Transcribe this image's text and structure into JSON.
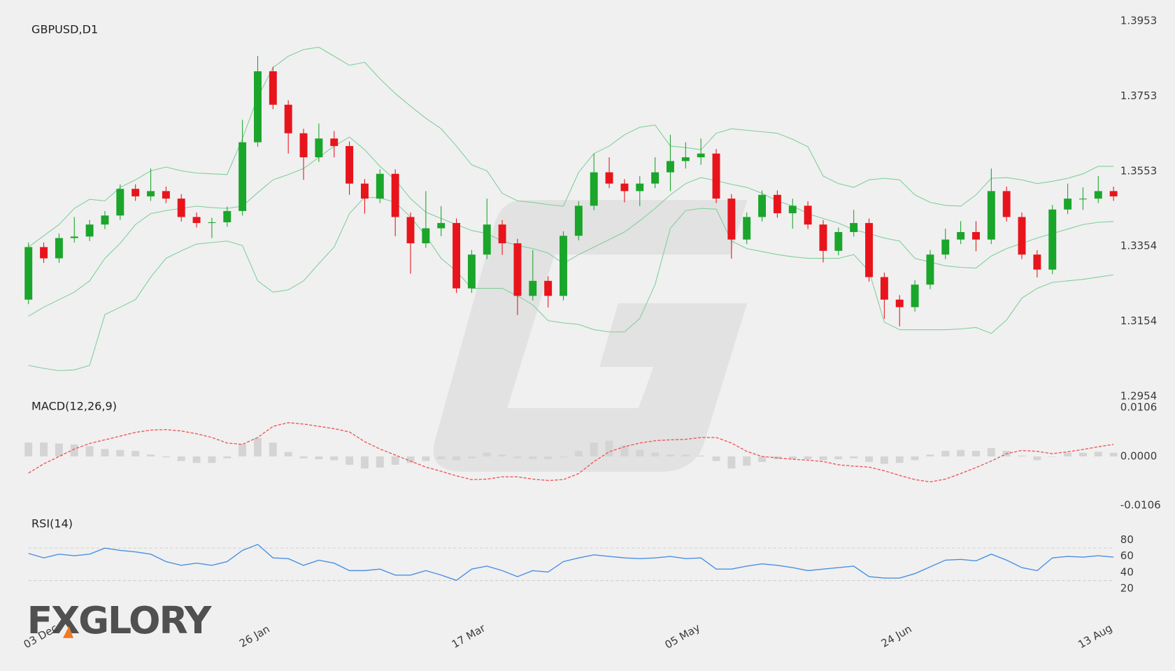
{
  "logo": "FXGLORY",
  "chart_data": [
    {
      "type": "candlestick",
      "title": "GBPUSD,D1",
      "categories": [
        null,
        "03 Dec",
        null,
        null,
        null,
        null,
        null,
        null,
        null,
        null,
        null,
        null,
        null,
        null,
        null,
        "26 Jan",
        null,
        null,
        null,
        null,
        null,
        null,
        null,
        null,
        null,
        null,
        null,
        null,
        null,
        "17 Mar",
        null,
        null,
        null,
        null,
        null,
        null,
        null,
        null,
        null,
        null,
        null,
        null,
        null,
        "05 May",
        null,
        null,
        null,
        null,
        null,
        null,
        null,
        null,
        null,
        null,
        null,
        null,
        null,
        "24 Jun",
        null,
        null,
        null,
        null,
        null,
        null,
        null,
        null,
        null,
        null,
        null,
        null,
        "13 Aug",
        null
      ],
      "open": [
        1.3211,
        1.3351,
        1.3321,
        1.3375,
        1.3379,
        1.3411,
        1.3435,
        1.3506,
        1.3486,
        1.35,
        1.348,
        1.3431,
        1.3415,
        1.3417,
        1.3447,
        1.363,
        1.3819,
        1.373,
        1.3654,
        1.359,
        1.364,
        1.362,
        1.352,
        1.348,
        1.3546,
        1.3431,
        1.3361,
        1.3401,
        1.3415,
        1.3241,
        1.3331,
        1.3411,
        1.3361,
        1.3221,
        1.3261,
        1.3221,
        1.3381,
        1.3461,
        1.355,
        1.352,
        1.35,
        1.352,
        1.355,
        1.358,
        1.359,
        1.36,
        1.348,
        1.3371,
        1.3431,
        1.349,
        1.3441,
        1.3461,
        1.3411,
        1.3341,
        1.3391,
        1.3415,
        1.3271,
        1.3211,
        1.3191,
        1.3251,
        1.3331,
        1.3371,
        1.3391,
        1.3371,
        1.35,
        1.3431,
        1.3331,
        1.3291,
        1.3451,
        1.348,
        1.348,
        1.35
      ],
      "high": [
        1.3363,
        1.3363,
        1.3387,
        1.3431,
        1.3423,
        1.3447,
        1.3518,
        1.3518,
        1.356,
        1.3512,
        1.3492,
        1.3443,
        1.3429,
        1.3459,
        1.369,
        1.386,
        1.3831,
        1.3742,
        1.3666,
        1.368,
        1.366,
        1.3632,
        1.3532,
        1.3558,
        1.3558,
        1.3443,
        1.35,
        1.346,
        1.3427,
        1.3343,
        1.348,
        1.3423,
        1.3373,
        1.3343,
        1.3273,
        1.3393,
        1.3473,
        1.36,
        1.359,
        1.3532,
        1.354,
        1.359,
        1.365,
        1.363,
        1.364,
        1.3612,
        1.3492,
        1.3443,
        1.3502,
        1.3502,
        1.348,
        1.3473,
        1.3423,
        1.3403,
        1.345,
        1.3427,
        1.3283,
        1.3223,
        1.3263,
        1.3343,
        1.34,
        1.342,
        1.342,
        1.356,
        1.3512,
        1.3443,
        1.3343,
        1.3463,
        1.352,
        1.351,
        1.354,
        1.3512
      ],
      "low": [
        1.3199,
        1.3309,
        1.3309,
        1.3363,
        1.3367,
        1.3399,
        1.3423,
        1.3474,
        1.3474,
        1.3468,
        1.3419,
        1.3403,
        1.3375,
        1.3405,
        1.3435,
        1.3618,
        1.3718,
        1.36,
        1.353,
        1.3578,
        1.359,
        1.349,
        1.344,
        1.3468,
        1.338,
        1.328,
        1.3349,
        1.338,
        1.3229,
        1.3229,
        1.3319,
        1.333,
        1.317,
        1.3209,
        1.319,
        1.3209,
        1.3369,
        1.3449,
        1.3508,
        1.347,
        1.346,
        1.3508,
        1.35,
        1.356,
        1.357,
        1.3468,
        1.332,
        1.3359,
        1.3419,
        1.3429,
        1.34,
        1.3399,
        1.331,
        1.3329,
        1.3379,
        1.3259,
        1.316,
        1.314,
        1.3179,
        1.3239,
        1.3319,
        1.3359,
        1.334,
        1.3359,
        1.3419,
        1.3319,
        1.327,
        1.3279,
        1.3439,
        1.345,
        1.3468,
        1.3474
      ],
      "close": [
        1.3351,
        1.3321,
        1.3375,
        1.3379,
        1.3411,
        1.3435,
        1.3506,
        1.3486,
        1.35,
        1.348,
        1.3431,
        1.3415,
        1.3417,
        1.3447,
        1.363,
        1.3819,
        1.373,
        1.3654,
        1.359,
        1.364,
        1.362,
        1.352,
        1.348,
        1.3546,
        1.3431,
        1.3361,
        1.3401,
        1.3415,
        1.3241,
        1.3331,
        1.3411,
        1.3361,
        1.3221,
        1.3261,
        1.3221,
        1.3381,
        1.3461,
        1.355,
        1.352,
        1.35,
        1.352,
        1.355,
        1.358,
        1.359,
        1.36,
        1.348,
        1.3371,
        1.3431,
        1.349,
        1.3441,
        1.3461,
        1.3411,
        1.3341,
        1.3391,
        1.3415,
        1.3271,
        1.3211,
        1.3191,
        1.3251,
        1.3331,
        1.3371,
        1.3391,
        1.3371,
        1.35,
        1.3431,
        1.3331,
        1.3291,
        1.3451,
        1.348,
        1.348,
        1.35,
        1.3486
      ],
      "bands": {
        "upper": [
          1.3351,
          1.3381,
          1.3411,
          1.3454,
          1.3478,
          1.3474,
          1.351,
          1.353,
          1.3554,
          1.3564,
          1.3554,
          1.3548,
          1.3546,
          1.3544,
          1.364,
          1.375,
          1.3829,
          1.3859,
          1.3877,
          1.3883,
          1.3859,
          1.3835,
          1.3843,
          1.3799,
          1.376,
          1.3726,
          1.3694,
          1.3666,
          1.362,
          1.357,
          1.3554,
          1.3494,
          1.3474,
          1.347,
          1.3464,
          1.346,
          1.355,
          1.36,
          1.362,
          1.365,
          1.367,
          1.3676,
          1.362,
          1.3616,
          1.361,
          1.3654,
          1.3666,
          1.3662,
          1.3658,
          1.3654,
          1.3638,
          1.3618,
          1.354,
          1.352,
          1.351,
          1.353,
          1.3534,
          1.353,
          1.349,
          1.347,
          1.3462,
          1.346,
          1.349,
          1.3534,
          1.3536,
          1.353,
          1.352,
          1.3526,
          1.3534,
          1.3546,
          1.3566,
          1.3566
        ],
        "middle": [
          1.3167,
          1.3191,
          1.3211,
          1.3231,
          1.3261,
          1.3321,
          1.3361,
          1.3411,
          1.344,
          1.3448,
          1.3454,
          1.346,
          1.3456,
          1.3454,
          1.346,
          1.3496,
          1.353,
          1.3544,
          1.356,
          1.359,
          1.362,
          1.3644,
          1.361,
          1.3566,
          1.353,
          1.348,
          1.3444,
          1.3427,
          1.3411,
          1.3395,
          1.3387,
          1.3367,
          1.3355,
          1.3347,
          1.3335,
          1.3307,
          1.3331,
          1.3351,
          1.3371,
          1.3391,
          1.3421,
          1.3454,
          1.349,
          1.352,
          1.3536,
          1.3528,
          1.3518,
          1.351,
          1.3494,
          1.3474,
          1.346,
          1.344,
          1.3427,
          1.3415,
          1.3397,
          1.3387,
          1.3375,
          1.3367,
          1.3321,
          1.3311,
          1.3301,
          1.3297,
          1.3295,
          1.3327,
          1.3347,
          1.3361,
          1.3375,
          1.3387,
          1.3399,
          1.3411,
          1.3417,
          1.3419
        ],
        "lower": [
          1.3036,
          1.3028,
          1.3022,
          1.3024,
          1.3036,
          1.3171,
          1.3191,
          1.3211,
          1.3271,
          1.3321,
          1.3341,
          1.3359,
          1.3363,
          1.3367,
          1.3355,
          1.3261,
          1.3231,
          1.3237,
          1.3261,
          1.3307,
          1.3351,
          1.344,
          1.3484,
          1.3482,
          1.347,
          1.3431,
          1.3381,
          1.3321,
          1.3287,
          1.3241,
          1.3241,
          1.3241,
          1.3221,
          1.3197,
          1.3155,
          1.3149,
          1.3145,
          1.3131,
          1.3125,
          1.3125,
          1.3161,
          1.3251,
          1.3401,
          1.3448,
          1.3454,
          1.3452,
          1.3367,
          1.3347,
          1.3339,
          1.3331,
          1.3325,
          1.3321,
          1.3321,
          1.3321,
          1.3331,
          1.3287,
          1.3151,
          1.3131,
          1.3131,
          1.3131,
          1.3131,
          1.3133,
          1.3137,
          1.3121,
          1.3157,
          1.3215,
          1.3241,
          1.3257,
          1.3261,
          1.3265,
          1.3271,
          1.3277
        ]
      },
      "up_color": "#1aa52b",
      "down_color": "#e8141c",
      "band_color": "#7fcf9a",
      "ylim": [
        1.2954,
        1.3953
      ],
      "yticks": [
        1.2954,
        1.3154,
        1.3354,
        1.3553,
        1.3753,
        1.3953
      ]
    },
    {
      "type": "macd",
      "title": "MACD(12,26,9)",
      "histogram": [
        0.003,
        0.003,
        0.0028,
        0.0026,
        0.0022,
        0.0016,
        0.0014,
        0.0012,
        0.0004,
        -0.0002,
        -0.001,
        -0.0014,
        -0.0014,
        -0.0004,
        0.0026,
        0.004,
        0.003,
        0.001,
        -0.0004,
        -0.0006,
        -0.0008,
        -0.0018,
        -0.0026,
        -0.0024,
        -0.0018,
        -0.0014,
        -0.001,
        -0.0006,
        -0.0008,
        -0.0004,
        0.0008,
        0.0004,
        -0.0004,
        -0.0006,
        -0.0006,
        -0.0002,
        0.0012,
        0.003,
        0.0034,
        0.0024,
        0.0014,
        0.0008,
        0.0004,
        0.0004,
        0.0002,
        -0.001,
        -0.0026,
        -0.002,
        -0.0012,
        -0.0006,
        -0.0006,
        -0.0006,
        -0.0008,
        -0.0006,
        -0.0004,
        -0.0012,
        -0.0016,
        -0.0014,
        -0.0008,
        0.0004,
        0.0012,
        0.0014,
        0.0012,
        0.0018,
        0.0012,
        0.0002,
        -0.0008,
        0,
        0.0008,
        0.0008,
        0.001,
        0.0008
      ],
      "signal": [
        -0.0036,
        -0.0016,
        0,
        0.0016,
        0.0028,
        0.0036,
        0.0044,
        0.0052,
        0.0057,
        0.0058,
        0.0055,
        0.0049,
        0.0041,
        0.0029,
        0.0026,
        0.0041,
        0.0065,
        0.0073,
        0.007,
        0.0065,
        0.006,
        0.0053,
        0.0032,
        0.0016,
        0.0003,
        -0.001,
        -0.0023,
        -0.0032,
        -0.0042,
        -0.005,
        -0.0049,
        -0.0044,
        -0.0044,
        -0.0049,
        -0.0052,
        -0.005,
        -0.0037,
        -0.0011,
        0.001,
        0.0021,
        0.0029,
        0.0034,
        0.0036,
        0.0037,
        0.0041,
        0.0041,
        0.0029,
        0.0011,
        0,
        -0.0003,
        -0.0006,
        -0.0008,
        -0.0011,
        -0.0018,
        -0.0021,
        -0.0023,
        -0.0031,
        -0.0041,
        -0.005,
        -0.0055,
        -0.0049,
        -0.0037,
        -0.0024,
        -0.001,
        0.0006,
        0.0013,
        0.0011,
        0.0006,
        0.001,
        0.0015,
        0.0021,
        0.0026
      ],
      "histogram_color": "#d4d4d4",
      "signal_color": "#f05a5a",
      "ylim": [
        -0.0106,
        0.0106
      ],
      "yticks": [
        -0.0106,
        {
          "value": 0,
          "label": "0.0000"
        },
        0.0106
      ]
    },
    {
      "type": "line",
      "title": "RSI(14)",
      "values": [
        63.4,
        57.9,
        62.5,
        60.6,
        62.5,
        69.9,
        67.1,
        65.3,
        62.5,
        53.3,
        48.7,
        51.4,
        48.7,
        53.3,
        67.1,
        74.5,
        57.9,
        57.0,
        48.7,
        55.1,
        51.4,
        42.2,
        42.2,
        44.1,
        36.7,
        36.7,
        42.2,
        36.7,
        30.2,
        44.1,
        47.7,
        42.2,
        34.8,
        42.2,
        40.4,
        53.3,
        57.9,
        61.6,
        59.7,
        57.9,
        57.0,
        57.9,
        59.7,
        57.0,
        57.9,
        44.1,
        44.1,
        47.7,
        50.5,
        48.7,
        45.9,
        42.2,
        44.1,
        45.9,
        47.7,
        34.8,
        33.0,
        33.0,
        38.5,
        46.8,
        55.1,
        56.0,
        54.2,
        62.5,
        55.1,
        45.9,
        42.2,
        57.9,
        59.7,
        58.8,
        60.6,
        58.8
      ],
      "color": "#4a90e2",
      "levels": [
        30,
        70
      ],
      "ylim": [
        20,
        80
      ],
      "yticks": [
        20,
        40,
        60,
        80
      ]
    }
  ]
}
